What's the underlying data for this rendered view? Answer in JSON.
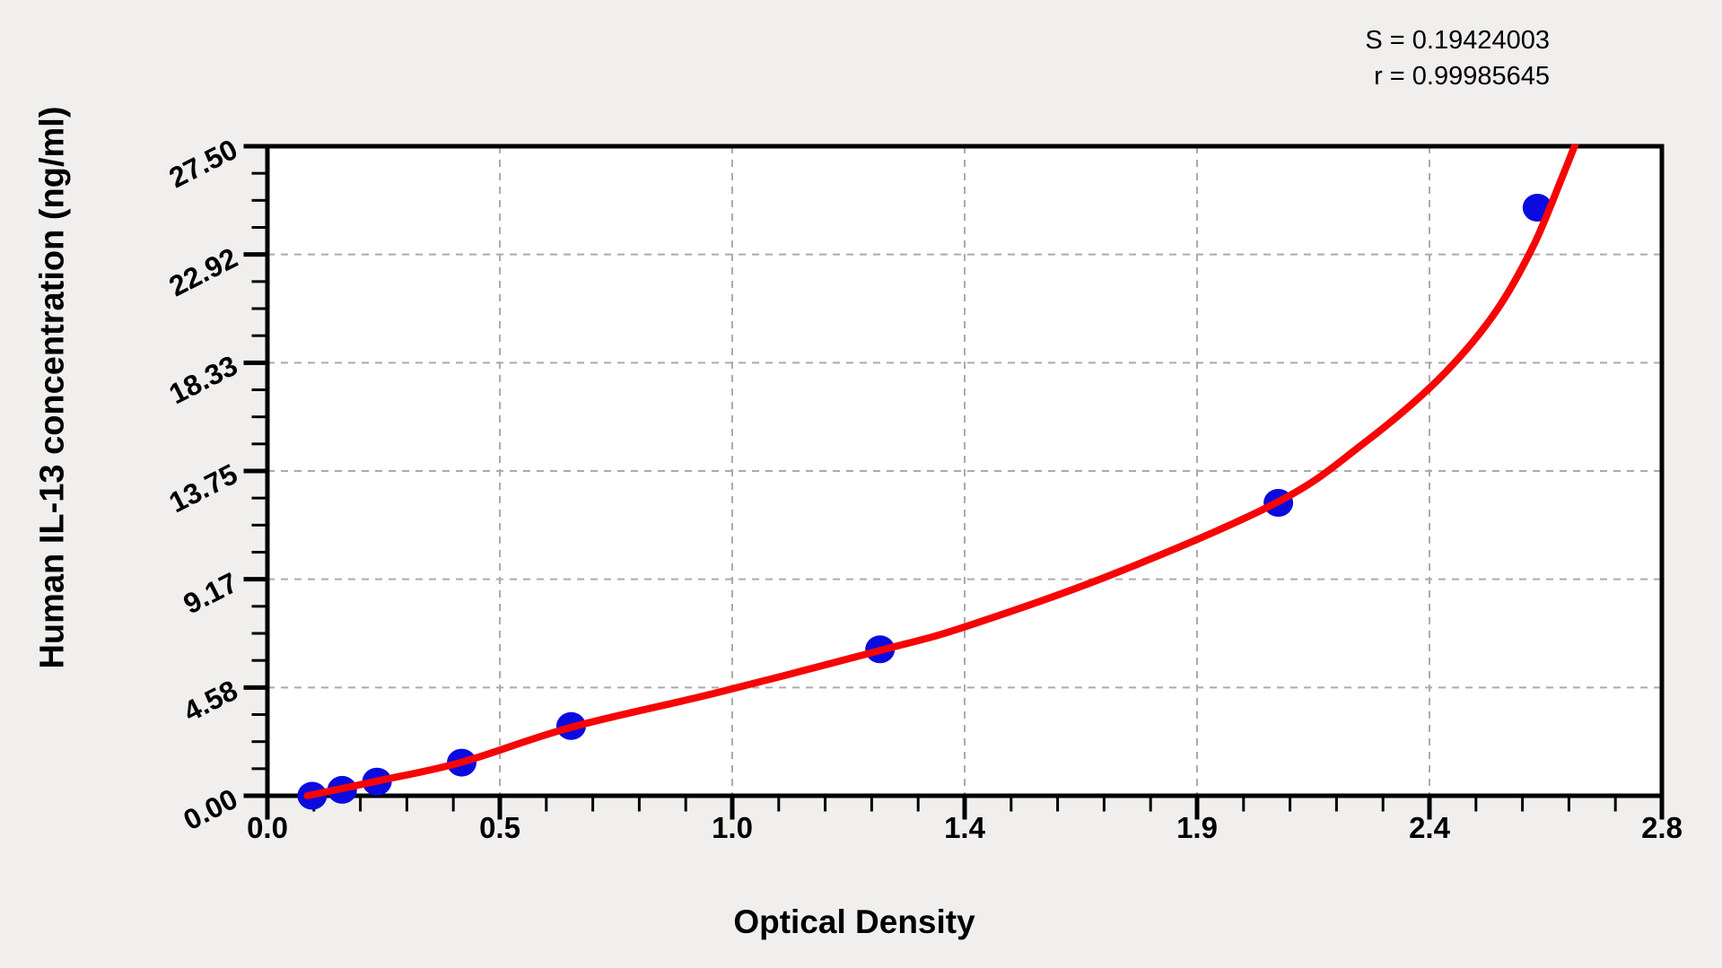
{
  "figure": {
    "background": "#f0efee",
    "plot_background": "#ffffff"
  },
  "chart_data": {
    "type": "scatter+line",
    "title": "",
    "xlabel": "Optical Density",
    "ylabel": "Human IL-13 concentration (ng/ml)",
    "xlim": [
      0,
      2.8
    ],
    "ylim": [
      0,
      27.5
    ],
    "x_tick_labels": [
      "0.0",
      "0.5",
      "1.0",
      "1.4",
      "1.9",
      "2.4",
      "2.8"
    ],
    "y_tick_labels": [
      "0.00",
      "4.58",
      "9.17",
      "13.75",
      "18.33",
      "22.92",
      "27.50"
    ],
    "x_minor_divisions": 5,
    "y_minor_divisions": 4,
    "grid": "dashed gridlines at major ticks, both axes",
    "legend_position": "none",
    "annotations": {
      "s_line": "S = 0.19424003",
      "r_line": "r = 0.99985645"
    },
    "colors": {
      "curve": "#f60505",
      "points": "#0b0be0",
      "grid": "#ababab",
      "axis": "#000000"
    },
    "series": [
      {
        "name": "standard-points",
        "type": "scatter",
        "points": [
          [
            0.09,
            0.0
          ],
          [
            0.15,
            0.25
          ],
          [
            0.22,
            0.6
          ],
          [
            0.39,
            1.4
          ],
          [
            0.61,
            2.95
          ],
          [
            1.23,
            6.2
          ],
          [
            2.03,
            12.4
          ],
          [
            2.55,
            24.9
          ]
        ]
      },
      {
        "name": "fitted-curve",
        "type": "line",
        "points": [
          [
            0.08,
            0.0
          ],
          [
            0.22,
            0.62
          ],
          [
            0.39,
            1.42
          ],
          [
            0.61,
            2.9
          ],
          [
            0.9,
            4.35
          ],
          [
            1.23,
            6.15
          ],
          [
            1.4,
            7.15
          ],
          [
            1.7,
            9.4
          ],
          [
            2.03,
            12.45
          ],
          [
            2.2,
            14.9
          ],
          [
            2.35,
            17.6
          ],
          [
            2.46,
            20.3
          ],
          [
            2.54,
            23.2
          ],
          [
            2.6,
            26.2
          ],
          [
            2.63,
            27.8
          ]
        ]
      }
    ]
  }
}
